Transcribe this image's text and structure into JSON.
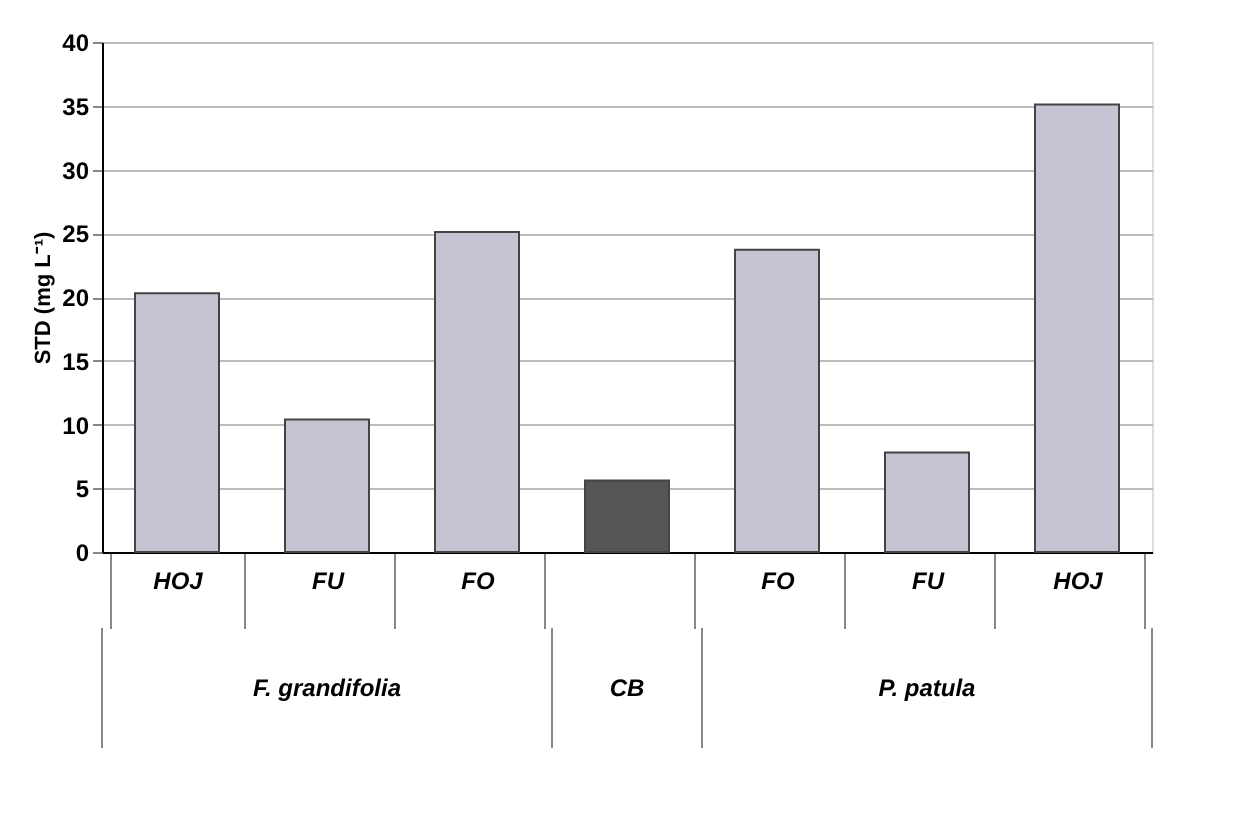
{
  "chart_data": {
    "type": "bar",
    "ylabel": "STD (mg L⁻¹)",
    "categories": [
      "HOJ",
      "FU",
      "FO",
      null,
      "FO",
      "FU",
      "HOJ"
    ],
    "values": [
      20.3,
      10.4,
      25.1,
      5.6,
      23.7,
      7.8,
      35.1
    ],
    "colors": [
      "#c4c4d2",
      "#c4c4d2",
      "#c4c4d2",
      "#555555",
      "#c4c4d2",
      "#c4c4d2",
      "#c4c4d2"
    ],
    "ylim": [
      0,
      40
    ],
    "yticks": [
      0,
      5,
      10,
      15,
      20,
      25,
      30,
      35,
      40
    ],
    "grid": "y",
    "annotations": [
      "F. grandifolia",
      "CB",
      "P. patula"
    ]
  }
}
